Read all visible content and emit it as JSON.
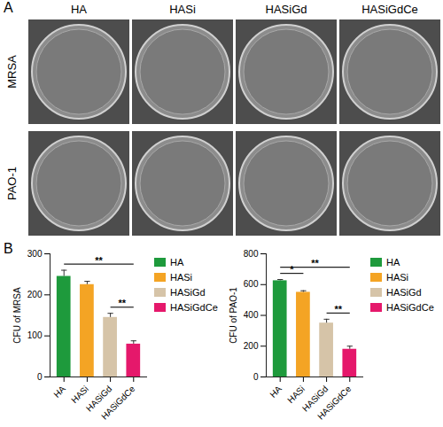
{
  "panel_a": {
    "label": "A",
    "columns": [
      "HA",
      "HASi",
      "HASiGd",
      "HASiGdCe"
    ],
    "rows": [
      "MRSA",
      "PAO-1"
    ]
  },
  "panel_b_label": "B",
  "chart_data": [
    {
      "type": "bar",
      "categories": [
        "HA",
        "HASi",
        "HASiGd",
        "HASiGdCe"
      ],
      "values": [
        245,
        225,
        145,
        80
      ],
      "errors": [
        15,
        8,
        10,
        8
      ],
      "colors": [
        "#1e9a3c",
        "#f4a424",
        "#d6c4a8",
        "#e5186b"
      ],
      "ylabel": "CFU of MRSA",
      "ylim": [
        0,
        300
      ],
      "yticks": [
        0,
        100,
        200,
        300
      ],
      "legend": "right",
      "significance": [
        {
          "from": "HA",
          "to": "HASiGdCe",
          "label": "**"
        },
        {
          "from": "HASiGd",
          "to": "HASiGdCe",
          "label": "**"
        }
      ]
    },
    {
      "type": "bar",
      "categories": [
        "HA",
        "HASi",
        "HASiGd",
        "HASiGdCe"
      ],
      "values": [
        625,
        550,
        350,
        180
      ],
      "errors": [
        8,
        10,
        25,
        20
      ],
      "colors": [
        "#1e9a3c",
        "#f4a424",
        "#d6c4a8",
        "#e5186b"
      ],
      "ylabel": "CFU of PAO-1",
      "ylim": [
        0,
        800
      ],
      "yticks": [
        0,
        200,
        400,
        600,
        800
      ],
      "legend": "right",
      "significance": [
        {
          "from": "HA",
          "to": "HASi",
          "label": "*"
        },
        {
          "from": "HA",
          "to": "HASiGdCe",
          "label": "**"
        },
        {
          "from": "HASiGd",
          "to": "HASiGdCe",
          "label": "**"
        }
      ]
    }
  ]
}
